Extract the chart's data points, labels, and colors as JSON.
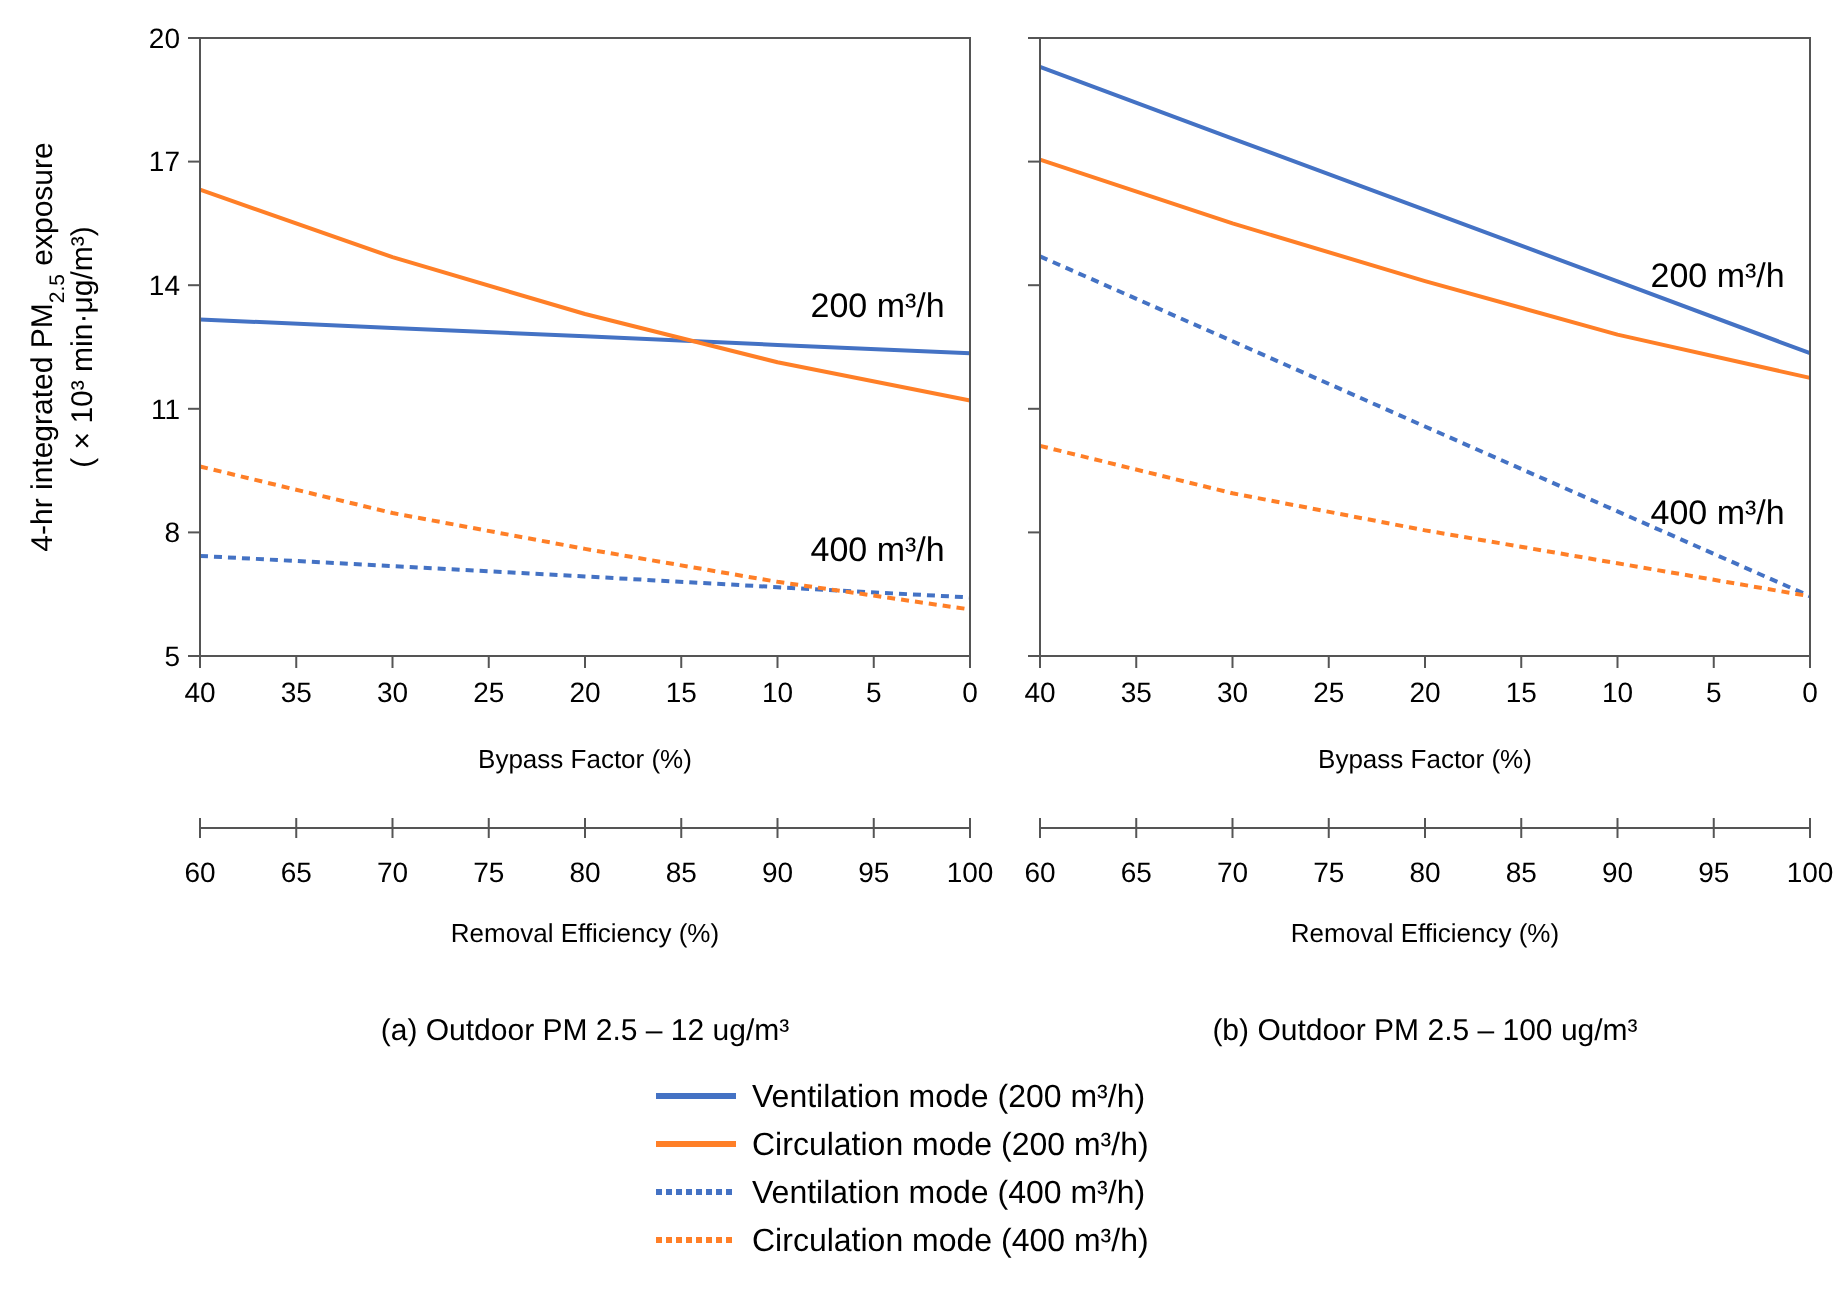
{
  "chart_data": [
    {
      "type": "line",
      "title": "(a) Outdoor PM 2.5 – 12 ug/m³",
      "xlabel": "Bypass Factor (%)",
      "x2label": "Removal Efficiency (%)",
      "ylabel": "4-hr integrated PM$_{2.5}$ exposure\n( × 10³ min·μg/m³)",
      "x": [
        40,
        30,
        20,
        10,
        0
      ],
      "xlim": [
        40,
        0
      ],
      "xticks": [
        40,
        35,
        30,
        25,
        20,
        15,
        10,
        5,
        0
      ],
      "x2lim": [
        60,
        100
      ],
      "x2ticks": [
        60,
        65,
        70,
        75,
        80,
        85,
        90,
        95,
        100
      ],
      "ylim": [
        5,
        20
      ],
      "yticks": [
        5,
        8,
        11,
        14,
        17,
        20
      ],
      "grid": false,
      "legend": "bottom",
      "annotations": [
        "200 m³/h",
        "400 m³/h"
      ],
      "series": [
        {
          "name": "Ventilation mode (200 m³/h)",
          "color": "#4472c4",
          "line_style": "solid",
          "values": [
            13.17,
            12.96,
            12.76,
            12.55,
            12.35
          ]
        },
        {
          "name": "Circulation mode (200 m³/h)",
          "color": "#ff7f27",
          "line_style": "solid",
          "values": [
            16.32,
            14.68,
            13.3,
            12.13,
            11.2
          ]
        },
        {
          "name": "Ventilation mode (400 m³/h)",
          "color": "#4472c4",
          "line_style": "dashed",
          "values": [
            7.43,
            7.18,
            6.93,
            6.67,
            6.42
          ]
        },
        {
          "name": "Circulation mode (400 m³/h)",
          "color": "#ff7f27",
          "line_style": "dashed",
          "values": [
            9.6,
            8.47,
            7.6,
            6.8,
            6.13
          ]
        }
      ]
    },
    {
      "type": "line",
      "title": "(b) Outdoor PM 2.5 – 100 ug/m³",
      "xlabel": "Bypass Factor (%)",
      "x2label": "Removal Efficiency (%)",
      "x": [
        40,
        30,
        20,
        10,
        0
      ],
      "xlim": [
        40,
        0
      ],
      "xticks": [
        40,
        35,
        30,
        25,
        20,
        15,
        10,
        5,
        0
      ],
      "x2lim": [
        60,
        100
      ],
      "x2ticks": [
        60,
        65,
        70,
        75,
        80,
        85,
        90,
        95,
        100
      ],
      "ylim": [
        5,
        20
      ],
      "yticks": [
        5,
        8,
        11,
        14,
        17,
        20
      ],
      "tick_labels": "x",
      "grid": false,
      "annotations": [
        "200 m³/h",
        "400 m³/h"
      ],
      "series": [
        {
          "color": "#4472c4",
          "line_style": "solid",
          "values": [
            19.3,
            17.56,
            15.83,
            14.09,
            12.35
          ]
        },
        {
          "color": "#ff7f27",
          "line_style": "solid",
          "values": [
            17.05,
            15.5,
            14.1,
            12.8,
            11.75
          ]
        },
        {
          "color": "#4472c4",
          "line_style": "dashed",
          "values": [
            14.7,
            12.64,
            10.57,
            8.51,
            6.45
          ]
        },
        {
          "color": "#ff7f27",
          "line_style": "dashed",
          "values": [
            10.1,
            8.95,
            8.05,
            7.25,
            6.45
          ]
        }
      ]
    }
  ]
}
